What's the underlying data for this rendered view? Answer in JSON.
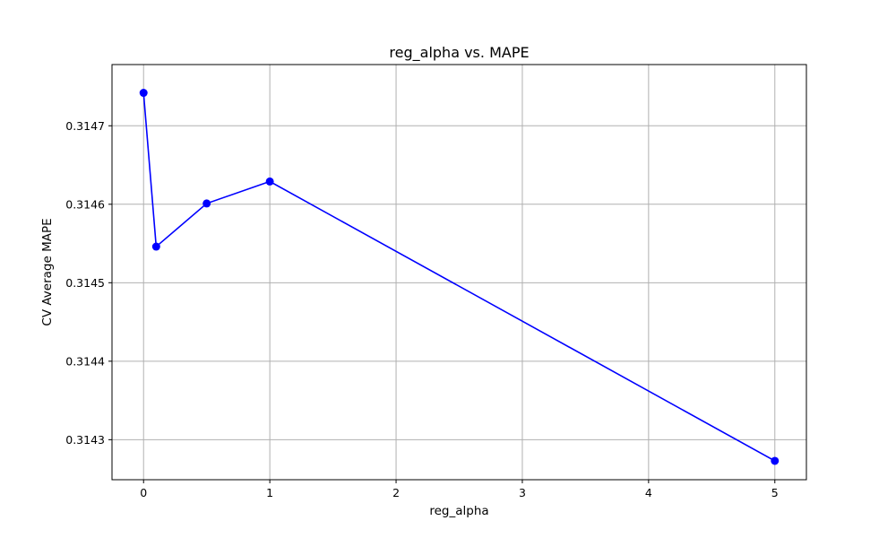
{
  "chart_data": {
    "type": "line",
    "title": "reg_alpha vs. MAPE",
    "xlabel": "reg_alpha",
    "ylabel": "CV Average MAPE",
    "x": [
      0,
      0.1,
      0.5,
      1,
      5
    ],
    "series": [
      {
        "values": [
          0.314742,
          0.314546,
          0.314601,
          0.314629,
          0.314273
        ],
        "color": "#0000ff",
        "marker": "circle"
      }
    ],
    "xlim": [
      -0.25,
      5.25
    ],
    "ylim": [
      0.314249,
      0.314778
    ],
    "xticks": [
      0,
      1,
      2,
      3,
      4,
      5
    ],
    "xtick_labels": [
      "0",
      "1",
      "2",
      "3",
      "4",
      "5"
    ],
    "yticks": [
      0.3143,
      0.3144,
      0.3145,
      0.3146,
      0.3147
    ],
    "ytick_labels": [
      "0.3143",
      "0.3144",
      "0.3145",
      "0.3146",
      "0.3147"
    ],
    "grid": true,
    "grid_color": "#b0b0b0"
  }
}
